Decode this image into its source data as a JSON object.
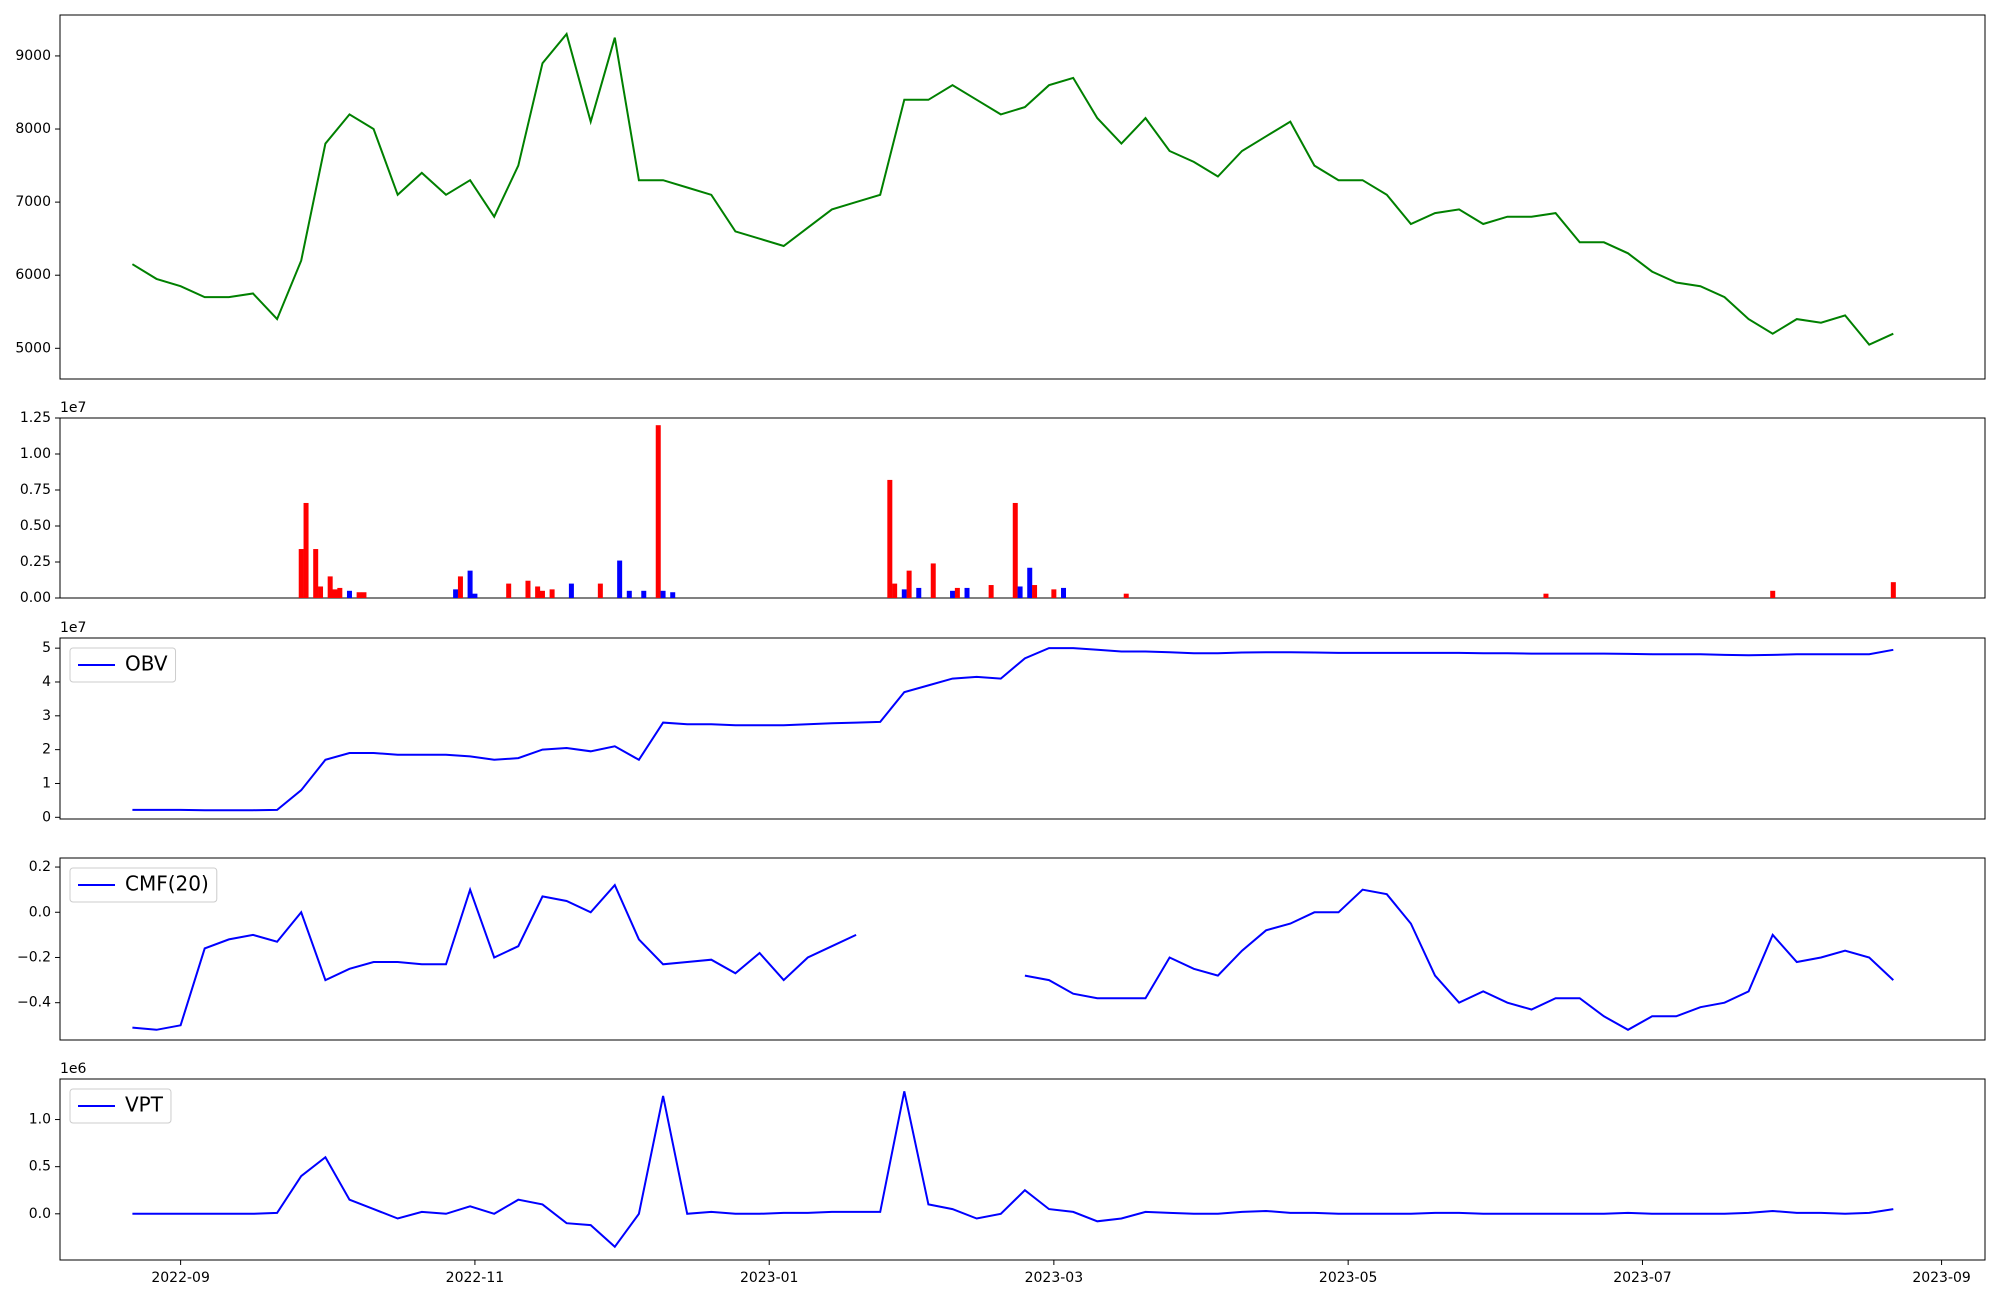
{
  "chart_data": [
    {
      "type": "line",
      "x": [
        "2022-08-22",
        "2022-08-27",
        "2022-09-01",
        "2022-09-06",
        "2022-09-11",
        "2022-09-16",
        "2022-09-21",
        "2022-09-26",
        "2022-10-01",
        "2022-10-06",
        "2022-10-11",
        "2022-10-16",
        "2022-10-21",
        "2022-10-26",
        "2022-10-31",
        "2022-11-05",
        "2022-11-10",
        "2022-11-15",
        "2022-11-20",
        "2022-11-25",
        "2022-11-30",
        "2022-12-05",
        "2022-12-10",
        "2022-12-15",
        "2022-12-20",
        "2022-12-25",
        "2022-12-30",
        "2023-01-04",
        "2023-01-09",
        "2023-01-14",
        "2023-01-19",
        "2023-01-24",
        "2023-01-29",
        "2023-02-03",
        "2023-02-08",
        "2023-02-13",
        "2023-02-18",
        "2023-02-23",
        "2023-02-28",
        "2023-03-05",
        "2023-03-10",
        "2023-03-15",
        "2023-03-20",
        "2023-03-25",
        "2023-03-30",
        "2023-04-04",
        "2023-04-09",
        "2023-04-14",
        "2023-04-19",
        "2023-04-24",
        "2023-04-29",
        "2023-05-04",
        "2023-05-09",
        "2023-05-14",
        "2023-05-19",
        "2023-05-24",
        "2023-05-29",
        "2023-06-03",
        "2023-06-08",
        "2023-06-13",
        "2023-06-18",
        "2023-06-23",
        "2023-06-28",
        "2023-07-03",
        "2023-07-08",
        "2023-07-13",
        "2023-07-18",
        "2023-07-23",
        "2023-07-28",
        "2023-08-02",
        "2023-08-07",
        "2023-08-12",
        "2023-08-17",
        "2023-08-22"
      ],
      "values": [
        6150,
        5950,
        5850,
        5700,
        5700,
        5750,
        5400,
        6200,
        7800,
        8200,
        8000,
        7100,
        7400,
        7100,
        7300,
        6800,
        7500,
        8900,
        9300,
        8100,
        9250,
        7300,
        7300,
        7200,
        7100,
        6600,
        6500,
        6400,
        6650,
        6900,
        7000,
        7100,
        8400,
        8400,
        8600,
        8400,
        8200,
        8300,
        8600,
        8700,
        8150,
        7800,
        8150,
        7700,
        7550,
        7350,
        7700,
        7900,
        8100,
        7500,
        7300,
        7300,
        7100,
        6700,
        6850,
        6900,
        6700,
        6800,
        6800,
        6850,
        6450,
        6450,
        6300,
        6050,
        5900,
        5850,
        5700,
        5400,
        5200,
        5400,
        5350,
        5450,
        5050,
        5200
      ],
      "color": "#008000",
      "xlim": [
        "2022-08-07",
        "2023-09-10"
      ],
      "ylim": [
        4580,
        9560
      ],
      "yticks": [
        5000,
        6000,
        7000,
        8000,
        9000
      ]
    },
    {
      "type": "bar",
      "offset_label": "1e7",
      "x": [
        "2022-09-26",
        "2022-09-27",
        "2022-09-29",
        "2022-09-30",
        "2022-10-02",
        "2022-10-03",
        "2022-10-04",
        "2022-10-06",
        "2022-10-08",
        "2022-10-09",
        "2022-10-28",
        "2022-10-29",
        "2022-10-31",
        "2022-11-01",
        "2022-11-08",
        "2022-11-12",
        "2022-11-14",
        "2022-11-15",
        "2022-11-17",
        "2022-11-21",
        "2022-11-27",
        "2022-12-01",
        "2022-12-03",
        "2022-12-06",
        "2022-12-09",
        "2022-12-10",
        "2022-12-12",
        "2023-01-26",
        "2023-01-27",
        "2023-01-29",
        "2023-01-30",
        "2023-02-01",
        "2023-02-04",
        "2023-02-08",
        "2023-02-09",
        "2023-02-11",
        "2023-02-16",
        "2023-02-21",
        "2023-02-22",
        "2023-02-24",
        "2023-02-25",
        "2023-03-01",
        "2023-03-03",
        "2023-03-16",
        "2023-06-11",
        "2023-07-28",
        "2023-08-22"
      ],
      "values": [
        0.34,
        0.66,
        0.34,
        0.08,
        0.15,
        0.06,
        0.07,
        0.05,
        0.04,
        0.04,
        0.06,
        0.15,
        0.19,
        0.03,
        0.1,
        0.12,
        0.08,
        0.05,
        0.06,
        0.1,
        0.1,
        0.26,
        0.05,
        0.05,
        1.2,
        0.05,
        0.04,
        0.82,
        0.1,
        0.06,
        0.19,
        0.07,
        0.24,
        0.05,
        0.07,
        0.07,
        0.09,
        0.66,
        0.08,
        0.21,
        0.09,
        0.06,
        0.07,
        0.03,
        0.03,
        0.05,
        0.11
      ],
      "colors": [
        "#ff0000",
        "#ff0000",
        "#ff0000",
        "#ff0000",
        "#ff0000",
        "#ff0000",
        "#ff0000",
        "#0000ff",
        "#ff0000",
        "#ff0000",
        "#0000ff",
        "#ff0000",
        "#0000ff",
        "#0000ff",
        "#ff0000",
        "#ff0000",
        "#ff0000",
        "#ff0000",
        "#ff0000",
        "#0000ff",
        "#ff0000",
        "#0000ff",
        "#0000ff",
        "#0000ff",
        "#ff0000",
        "#0000ff",
        "#0000ff",
        "#ff0000",
        "#ff0000",
        "#0000ff",
        "#ff0000",
        "#0000ff",
        "#ff0000",
        "#0000ff",
        "#ff0000",
        "#0000ff",
        "#ff0000",
        "#ff0000",
        "#0000ff",
        "#0000ff",
        "#ff0000",
        "#ff0000",
        "#0000ff",
        "#ff0000",
        "#ff0000",
        "#ff0000",
        "#ff0000"
      ],
      "xlim": [
        "2022-08-07",
        "2023-09-10"
      ],
      "ylim": [
        0,
        1.25
      ],
      "yticks": [
        {
          "value": 0,
          "label": "0.00"
        },
        {
          "value": 0.25,
          "label": "0.25"
        },
        {
          "value": 0.5,
          "label": "0.50"
        },
        {
          "value": 0.75,
          "label": "0.75"
        },
        {
          "value": 1,
          "label": "1.00"
        },
        {
          "value": 1.25,
          "label": "1.25"
        }
      ]
    },
    {
      "type": "line",
      "offset_label": "1e7",
      "legend": "upper left",
      "x": [
        "2022-08-22",
        "2022-08-27",
        "2022-09-01",
        "2022-09-06",
        "2022-09-11",
        "2022-09-16",
        "2022-09-21",
        "2022-09-26",
        "2022-10-01",
        "2022-10-06",
        "2022-10-11",
        "2022-10-16",
        "2022-10-21",
        "2022-10-26",
        "2022-10-31",
        "2022-11-05",
        "2022-11-10",
        "2022-11-15",
        "2022-11-20",
        "2022-11-25",
        "2022-11-30",
        "2022-12-05",
        "2022-12-10",
        "2022-12-15",
        "2022-12-20",
        "2022-12-25",
        "2022-12-30",
        "2023-01-04",
        "2023-01-09",
        "2023-01-14",
        "2023-01-19",
        "2023-01-24",
        "2023-01-29",
        "2023-02-03",
        "2023-02-08",
        "2023-02-13",
        "2023-02-18",
        "2023-02-23",
        "2023-02-28",
        "2023-03-05",
        "2023-03-10",
        "2023-03-15",
        "2023-03-20",
        "2023-03-25",
        "2023-03-30",
        "2023-04-04",
        "2023-04-09",
        "2023-04-14",
        "2023-04-19",
        "2023-04-24",
        "2023-04-29",
        "2023-05-04",
        "2023-05-09",
        "2023-05-14",
        "2023-05-19",
        "2023-05-24",
        "2023-05-29",
        "2023-06-03",
        "2023-06-08",
        "2023-06-13",
        "2023-06-18",
        "2023-06-23",
        "2023-06-28",
        "2023-07-03",
        "2023-07-08",
        "2023-07-13",
        "2023-07-18",
        "2023-07-23",
        "2023-07-28",
        "2023-08-02",
        "2023-08-07",
        "2023-08-12",
        "2023-08-17",
        "2023-08-22"
      ],
      "series": [
        {
          "name": "OBV",
          "color": "#0000ff",
          "values": [
            0.22,
            0.22,
            0.22,
            0.21,
            0.21,
            0.21,
            0.22,
            0.8,
            1.7,
            1.9,
            1.9,
            1.85,
            1.85,
            1.85,
            1.8,
            1.7,
            1.75,
            2.0,
            2.05,
            1.95,
            2.1,
            1.7,
            2.8,
            2.75,
            2.75,
            2.72,
            2.72,
            2.72,
            2.75,
            2.78,
            2.8,
            2.82,
            3.7,
            3.9,
            4.1,
            4.15,
            4.1,
            4.7,
            5.0,
            5.0,
            4.95,
            4.9,
            4.9,
            4.88,
            4.85,
            4.85,
            4.87,
            4.88,
            4.88,
            4.87,
            4.86,
            4.86,
            4.86,
            4.86,
            4.86,
            4.86,
            4.85,
            4.85,
            4.84,
            4.84,
            4.84,
            4.84,
            4.83,
            4.82,
            4.82,
            4.82,
            4.8,
            4.79,
            4.8,
            4.82,
            4.82,
            4.82,
            4.82,
            4.95
          ]
        }
      ],
      "xlim": [
        "2022-08-07",
        "2023-09-10"
      ],
      "ylim": [
        -0.05,
        5.3
      ],
      "yticks": [
        0,
        1,
        2,
        3,
        4,
        5
      ]
    },
    {
      "type": "line",
      "legend": "upper left",
      "x": [
        "2022-08-22",
        "2022-08-27",
        "2022-09-01",
        "2022-09-06",
        "2022-09-11",
        "2022-09-16",
        "2022-09-21",
        "2022-09-26",
        "2022-10-01",
        "2022-10-06",
        "2022-10-11",
        "2022-10-16",
        "2022-10-21",
        "2022-10-26",
        "2022-10-31",
        "2022-11-05",
        "2022-11-10",
        "2022-11-15",
        "2022-11-20",
        "2022-11-25",
        "2022-11-30",
        "2022-12-05",
        "2022-12-10",
        "2022-12-15",
        "2022-12-20",
        "2022-12-25",
        "2022-12-30",
        "2023-01-04",
        "2023-01-09",
        "2023-01-14",
        "2023-01-19",
        "2023-01-24",
        "2023-01-29",
        "2023-02-03",
        "2023-02-08",
        "2023-02-13",
        "2023-02-18",
        "2023-02-23",
        "2023-02-28",
        "2023-03-05",
        "2023-03-10",
        "2023-03-15",
        "2023-03-20",
        "2023-03-25",
        "2023-03-30",
        "2023-04-04",
        "2023-04-09",
        "2023-04-14",
        "2023-04-19",
        "2023-04-24",
        "2023-04-29",
        "2023-05-04",
        "2023-05-09",
        "2023-05-14",
        "2023-05-19",
        "2023-05-24",
        "2023-05-29",
        "2023-06-03",
        "2023-06-08",
        "2023-06-13",
        "2023-06-18",
        "2023-06-23",
        "2023-06-28",
        "2023-07-03",
        "2023-07-08",
        "2023-07-13",
        "2023-07-18",
        "2023-07-23",
        "2023-07-28",
        "2023-08-02",
        "2023-08-07",
        "2023-08-12",
        "2023-08-17",
        "2023-08-22"
      ],
      "series": [
        {
          "name": "CMF(20)",
          "color": "#0000ff",
          "values": [
            -0.51,
            -0.52,
            -0.5,
            -0.16,
            -0.12,
            -0.1,
            -0.13,
            0.0,
            -0.3,
            -0.25,
            -0.22,
            -0.22,
            -0.23,
            -0.23,
            0.1,
            -0.2,
            -0.15,
            0.07,
            0.05,
            0.0,
            0.12,
            -0.12,
            -0.23,
            -0.22,
            -0.21,
            -0.27,
            -0.18,
            -0.3,
            -0.2,
            -0.15,
            -0.1,
            null,
            null,
            null,
            null,
            null,
            null,
            -0.28,
            -0.3,
            -0.36,
            -0.38,
            -0.38,
            -0.38,
            -0.2,
            -0.25,
            -0.28,
            -0.17,
            -0.08,
            -0.05,
            0.0,
            0.0,
            0.1,
            0.08,
            -0.05,
            -0.28,
            -0.4,
            -0.35,
            -0.4,
            -0.43,
            -0.38,
            -0.38,
            -0.46,
            -0.52,
            -0.46,
            -0.46,
            -0.42,
            -0.4,
            -0.35,
            -0.1,
            -0.22,
            -0.2,
            -0.17,
            -0.2,
            -0.3
          ]
        }
      ],
      "xlim": [
        "2022-08-07",
        "2023-09-10"
      ],
      "ylim": [
        -0.565,
        0.24
      ],
      "yticks": [
        {
          "value": -0.4,
          "label": "−0.4"
        },
        {
          "value": -0.2,
          "label": "−0.2"
        },
        {
          "value": 0,
          "label": "0.0"
        },
        0.2
      ]
    },
    {
      "type": "line",
      "offset_label": "1e6",
      "legend": "upper left",
      "x": [
        "2022-08-22",
        "2022-08-27",
        "2022-09-01",
        "2022-09-06",
        "2022-09-11",
        "2022-09-16",
        "2022-09-21",
        "2022-09-26",
        "2022-10-01",
        "2022-10-06",
        "2022-10-11",
        "2022-10-16",
        "2022-10-21",
        "2022-10-26",
        "2022-10-31",
        "2022-11-05",
        "2022-11-10",
        "2022-11-15",
        "2022-11-20",
        "2022-11-25",
        "2022-11-30",
        "2022-12-05",
        "2022-12-10",
        "2022-12-15",
        "2022-12-20",
        "2022-12-25",
        "2022-12-30",
        "2023-01-04",
        "2023-01-09",
        "2023-01-14",
        "2023-01-19",
        "2023-01-24",
        "2023-01-29",
        "2023-02-03",
        "2023-02-08",
        "2023-02-13",
        "2023-02-18",
        "2023-02-23",
        "2023-02-28",
        "2023-03-05",
        "2023-03-10",
        "2023-03-15",
        "2023-03-20",
        "2023-03-25",
        "2023-03-30",
        "2023-04-04",
        "2023-04-09",
        "2023-04-14",
        "2023-04-19",
        "2023-04-24",
        "2023-04-29",
        "2023-05-04",
        "2023-05-09",
        "2023-05-14",
        "2023-05-19",
        "2023-05-24",
        "2023-05-29",
        "2023-06-03",
        "2023-06-08",
        "2023-06-13",
        "2023-06-18",
        "2023-06-23",
        "2023-06-28",
        "2023-07-03",
        "2023-07-08",
        "2023-07-13",
        "2023-07-18",
        "2023-07-23",
        "2023-07-28",
        "2023-08-02",
        "2023-08-07",
        "2023-08-12",
        "2023-08-17",
        "2023-08-22"
      ],
      "series": [
        {
          "name": "VPT",
          "color": "#0000ff",
          "values": [
            0,
            0,
            0,
            0,
            0,
            0,
            0.01,
            0.4,
            0.6,
            0.15,
            0.05,
            -0.05,
            0.02,
            0.0,
            0.08,
            0.0,
            0.15,
            0.1,
            -0.1,
            -0.12,
            -0.35,
            0.0,
            1.25,
            0.0,
            0.02,
            0.0,
            0.0,
            0.01,
            0.01,
            0.02,
            0.02,
            0.02,
            1.3,
            0.1,
            0.05,
            -0.05,
            0.0,
            0.25,
            0.05,
            0.02,
            -0.08,
            -0.05,
            0.02,
            0.01,
            0.0,
            0.0,
            0.02,
            0.03,
            0.01,
            0.01,
            0.0,
            0.0,
            0.0,
            0.0,
            0.01,
            0.01,
            0.0,
            0.0,
            0.0,
            0.0,
            0.0,
            0.0,
            0.01,
            0.0,
            0.0,
            0.0,
            0.0,
            0.01,
            0.03,
            0.01,
            0.01,
            0.0,
            0.01,
            0.05
          ]
        }
      ],
      "xlim": [
        "2022-08-07",
        "2023-09-10"
      ],
      "ylim": [
        -0.49,
        1.43
      ],
      "yticks": [
        {
          "value": 0,
          "label": "0.0"
        },
        {
          "value": 0.5,
          "label": "0.5"
        },
        {
          "value": 1,
          "label": "1.0"
        }
      ],
      "xticks": [
        {
          "value": "2022-09-01",
          "label": "2022-09"
        },
        {
          "value": "2022-11-01",
          "label": "2022-11"
        },
        {
          "value": "2023-01-01",
          "label": "2023-01"
        },
        {
          "value": "2023-03-01",
          "label": "2023-03"
        },
        {
          "value": "2023-05-01",
          "label": "2023-05"
        },
        {
          "value": "2023-07-01",
          "label": "2023-07"
        },
        {
          "value": "2023-09-01",
          "label": "2023-09"
        }
      ]
    }
  ]
}
